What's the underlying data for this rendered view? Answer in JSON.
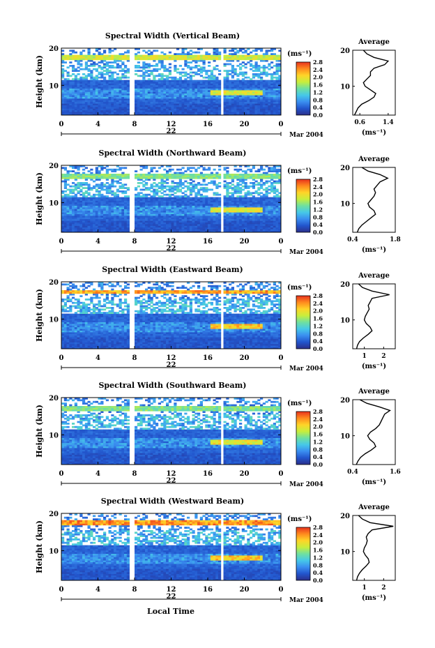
{
  "colors": {
    "colorbar_stops": [
      "#2b2f8a",
      "#2255cc",
      "#3a8ef0",
      "#46c8e8",
      "#6fe0a0",
      "#c8ee3c",
      "#ffd428",
      "#ff8a1e",
      "#e8321e"
    ]
  },
  "shared": {
    "ylabel": "Height (km)",
    "xlabel": "Local Time",
    "x_ticks": [
      "0",
      "4",
      "8",
      "12",
      "16",
      "20",
      "0"
    ],
    "day_label": "22",
    "date_label": "Mar 2004",
    "unit_label": "(ms⁻¹)",
    "colorbar_ticks": [
      "0.0",
      "0.4",
      "0.8",
      "1.2",
      "1.6",
      "2.0",
      "2.4",
      "2.8"
    ],
    "average_title": "Average",
    "average_xlabel": "(ms⁻¹)",
    "height_ticks": [
      "10",
      "20"
    ]
  },
  "chart_data": [
    {
      "type": "heatmap",
      "title": "Spectral Width (Vertical Beam)",
      "ylim": [
        2,
        20
      ],
      "xlim": [
        0,
        24
      ],
      "gaps": [
        7.7,
        17.6
      ],
      "features": [
        {
          "h": 17.5,
          "v": 2.2,
          "from": 0,
          "to": 24
        },
        {
          "h": 8,
          "v": 2.3,
          "from": 16.2,
          "to": 22
        }
      ],
      "avg_ticks": [
        "0.6",
        "1.4"
      ],
      "avg_xlim": [
        0.4,
        1.6
      ],
      "avg_profile": [
        [
          2,
          0.45
        ],
        [
          3,
          0.5
        ],
        [
          4,
          0.55
        ],
        [
          5,
          0.65
        ],
        [
          6,
          0.85
        ],
        [
          7,
          1.0
        ],
        [
          8,
          1.05
        ],
        [
          9,
          0.9
        ],
        [
          10,
          0.75
        ],
        [
          11,
          0.7
        ],
        [
          12,
          0.8
        ],
        [
          13,
          0.9
        ],
        [
          14,
          0.9
        ],
        [
          15,
          1.0
        ],
        [
          16,
          1.3
        ],
        [
          17,
          1.4
        ],
        [
          17.5,
          1.2
        ],
        [
          18,
          1.0
        ],
        [
          19,
          0.8
        ],
        [
          20,
          0.7
        ]
      ]
    },
    {
      "type": "heatmap",
      "title": "Spectral Width (Northward Beam)",
      "ylim": [
        2,
        20
      ],
      "xlim": [
        0,
        24
      ],
      "gaps": [
        7.7,
        17.6
      ],
      "features": [
        {
          "h": 17,
          "v": 1.8,
          "from": 0,
          "to": 24
        },
        {
          "h": 8,
          "v": 2.3,
          "from": 16.2,
          "to": 22
        }
      ],
      "avg_ticks": [
        "0.4",
        "1.8"
      ],
      "avg_xlim": [
        0.4,
        1.8
      ],
      "avg_profile": [
        [
          2,
          0.55
        ],
        [
          3,
          0.6
        ],
        [
          4,
          0.7
        ],
        [
          5,
          0.85
        ],
        [
          6,
          1.0
        ],
        [
          7,
          1.15
        ],
        [
          8,
          1.1
        ],
        [
          9,
          0.95
        ],
        [
          10,
          0.9
        ],
        [
          11,
          1.0
        ],
        [
          12,
          1.1
        ],
        [
          13,
          1.15
        ],
        [
          14,
          1.1
        ],
        [
          15,
          1.2
        ],
        [
          16,
          1.3
        ],
        [
          17,
          1.55
        ],
        [
          18,
          1.3
        ],
        [
          19,
          0.9
        ],
        [
          20,
          0.7
        ]
      ]
    },
    {
      "type": "heatmap",
      "title": "Spectral Width (Eastward Beam)",
      "ylim": [
        2,
        20
      ],
      "xlim": [
        0,
        24
      ],
      "gaps": [
        7.7,
        17.6
      ],
      "features": [
        {
          "h": 17.2,
          "v": 2.8,
          "from": 0,
          "to": 24
        },
        {
          "h": 8,
          "v": 2.6,
          "from": 16.2,
          "to": 22
        }
      ],
      "avg_ticks": [
        "1",
        "2"
      ],
      "avg_xlim": [
        0.4,
        2.6
      ],
      "avg_profile": [
        [
          2,
          0.6
        ],
        [
          3,
          0.65
        ],
        [
          4,
          0.75
        ],
        [
          5,
          0.95
        ],
        [
          6,
          1.2
        ],
        [
          7,
          1.4
        ],
        [
          8,
          1.3
        ],
        [
          9,
          1.1
        ],
        [
          10,
          1.0
        ],
        [
          11,
          1.05
        ],
        [
          12,
          1.15
        ],
        [
          13,
          1.25
        ],
        [
          14,
          1.2
        ],
        [
          15,
          1.3
        ],
        [
          16,
          1.4
        ],
        [
          17,
          2.3
        ],
        [
          18,
          1.4
        ],
        [
          19,
          0.9
        ],
        [
          20,
          0.7
        ]
      ]
    },
    {
      "type": "heatmap",
      "title": "Spectral Width (Southward Beam)",
      "ylim": [
        2,
        20
      ],
      "xlim": [
        0,
        24
      ],
      "gaps": [
        7.7,
        17.6
      ],
      "features": [
        {
          "h": 17,
          "v": 1.8,
          "from": 0,
          "to": 24
        },
        {
          "h": 8,
          "v": 2.4,
          "from": 16.2,
          "to": 22
        }
      ],
      "avg_ticks": [
        "0.4",
        "1.6"
      ],
      "avg_xlim": [
        0.4,
        1.6
      ],
      "avg_profile": [
        [
          2,
          0.5
        ],
        [
          3,
          0.55
        ],
        [
          4,
          0.62
        ],
        [
          5,
          0.75
        ],
        [
          6,
          0.92
        ],
        [
          7,
          1.05
        ],
        [
          8,
          1.0
        ],
        [
          9,
          0.88
        ],
        [
          10,
          0.82
        ],
        [
          11,
          0.9
        ],
        [
          12,
          1.05
        ],
        [
          13,
          1.15
        ],
        [
          14,
          1.2
        ],
        [
          15,
          1.25
        ],
        [
          16,
          1.3
        ],
        [
          17,
          1.45
        ],
        [
          18,
          1.15
        ],
        [
          19,
          0.8
        ],
        [
          20,
          0.6
        ]
      ]
    },
    {
      "type": "heatmap",
      "title": "Spectral Width (Westward Beam)",
      "ylim": [
        2,
        20
      ],
      "xlim": [
        0,
        24
      ],
      "gaps": [
        7.7,
        17.6
      ],
      "features": [
        {
          "h": 17.5,
          "v": 2.9,
          "from": 0,
          "to": 24
        },
        {
          "h": 8,
          "v": 2.6,
          "from": 16.2,
          "to": 22
        }
      ],
      "avg_ticks": [
        "1",
        "2"
      ],
      "avg_xlim": [
        0.4,
        2.6
      ],
      "avg_profile": [
        [
          2,
          0.6
        ],
        [
          3,
          0.65
        ],
        [
          4,
          0.75
        ],
        [
          5,
          0.9
        ],
        [
          6,
          1.1
        ],
        [
          7,
          1.25
        ],
        [
          8,
          1.2
        ],
        [
          9,
          1.05
        ],
        [
          10,
          0.95
        ],
        [
          11,
          1.0
        ],
        [
          12,
          1.1
        ],
        [
          13,
          1.15
        ],
        [
          14,
          1.1
        ],
        [
          15,
          1.2
        ],
        [
          16,
          1.4
        ],
        [
          17,
          2.5
        ],
        [
          18,
          1.3
        ],
        [
          19,
          0.9
        ],
        [
          20,
          0.7
        ]
      ]
    }
  ]
}
